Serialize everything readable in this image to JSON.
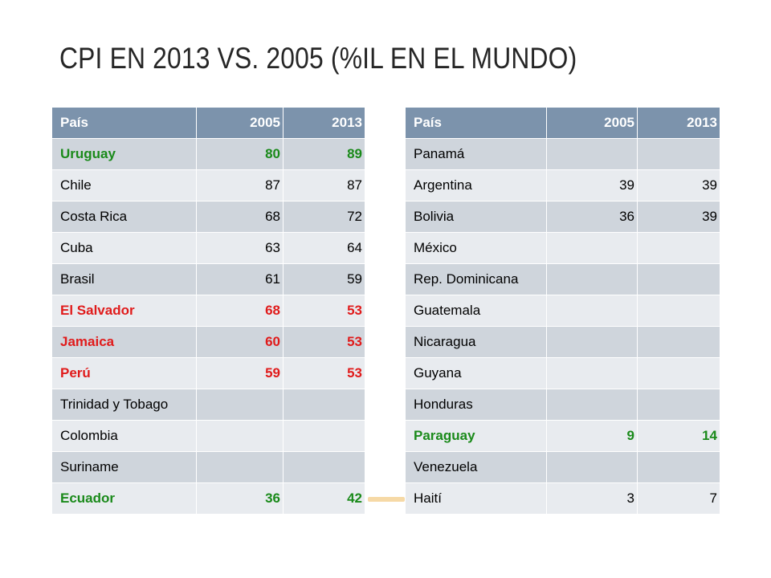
{
  "title": "CPI EN 2013 VS. 2005 (%IL EN EL MUNDO)",
  "colors": {
    "header_bg": "#7c93ac",
    "row_odd": "#cfd5dc",
    "row_even": "#e8ebef",
    "improved": "#1a8a1a",
    "worsened": "#e01b1b"
  },
  "left_table": {
    "headers": [
      "País",
      "2005",
      "2013"
    ],
    "rows": [
      {
        "country": "Uruguay",
        "y2005": "80",
        "y2013": "89",
        "status": "green"
      },
      {
        "country": "Chile",
        "y2005": "87",
        "y2013": "87",
        "status": ""
      },
      {
        "country": "Costa Rica",
        "y2005": "68",
        "y2013": "72",
        "status": ""
      },
      {
        "country": "Cuba",
        "y2005": "63",
        "y2013": "64",
        "status": ""
      },
      {
        "country": "Brasil",
        "y2005": "61",
        "y2013": "59",
        "status": ""
      },
      {
        "country": "El Salvador",
        "y2005": "68",
        "y2013": "53",
        "status": "red"
      },
      {
        "country": "Jamaica",
        "y2005": "60",
        "y2013": "53",
        "status": "red"
      },
      {
        "country": "Perú",
        "y2005": "59",
        "y2013": "53",
        "status": "red"
      },
      {
        "country": "Trinidad y Tobago",
        "y2005": "",
        "y2013": "",
        "status": ""
      },
      {
        "country": "Colombia",
        "y2005": "",
        "y2013": "",
        "status": ""
      },
      {
        "country": "Suriname",
        "y2005": "",
        "y2013": "",
        "status": ""
      },
      {
        "country": "Ecuador",
        "y2005": "36",
        "y2013": "42",
        "status": "green"
      }
    ]
  },
  "right_table": {
    "headers": [
      "País",
      "2005",
      "2013"
    ],
    "rows": [
      {
        "country": "Panamá",
        "y2005": "",
        "y2013": "",
        "status": ""
      },
      {
        "country": "Argentina",
        "y2005": "39",
        "y2013": "39",
        "status": ""
      },
      {
        "country": "Bolivia",
        "y2005": "36",
        "y2013": "39",
        "status": ""
      },
      {
        "country": "México",
        "y2005": "",
        "y2013": "",
        "status": ""
      },
      {
        "country": "Rep. Dominicana",
        "y2005": "",
        "y2013": "",
        "status": ""
      },
      {
        "country": "Guatemala",
        "y2005": "",
        "y2013": "",
        "status": ""
      },
      {
        "country": "Nicaragua",
        "y2005": "",
        "y2013": "",
        "status": ""
      },
      {
        "country": "Guyana",
        "y2005": "",
        "y2013": "",
        "status": ""
      },
      {
        "country": "Honduras",
        "y2005": "",
        "y2013": "",
        "status": ""
      },
      {
        "country": "Paraguay",
        "y2005": "9",
        "y2013": "14",
        "status": "green"
      },
      {
        "country": "Venezuela",
        "y2005": "",
        "y2013": "",
        "status": ""
      },
      {
        "country": "Haití",
        "y2005": "3",
        "y2013": "7",
        "status": ""
      }
    ]
  }
}
